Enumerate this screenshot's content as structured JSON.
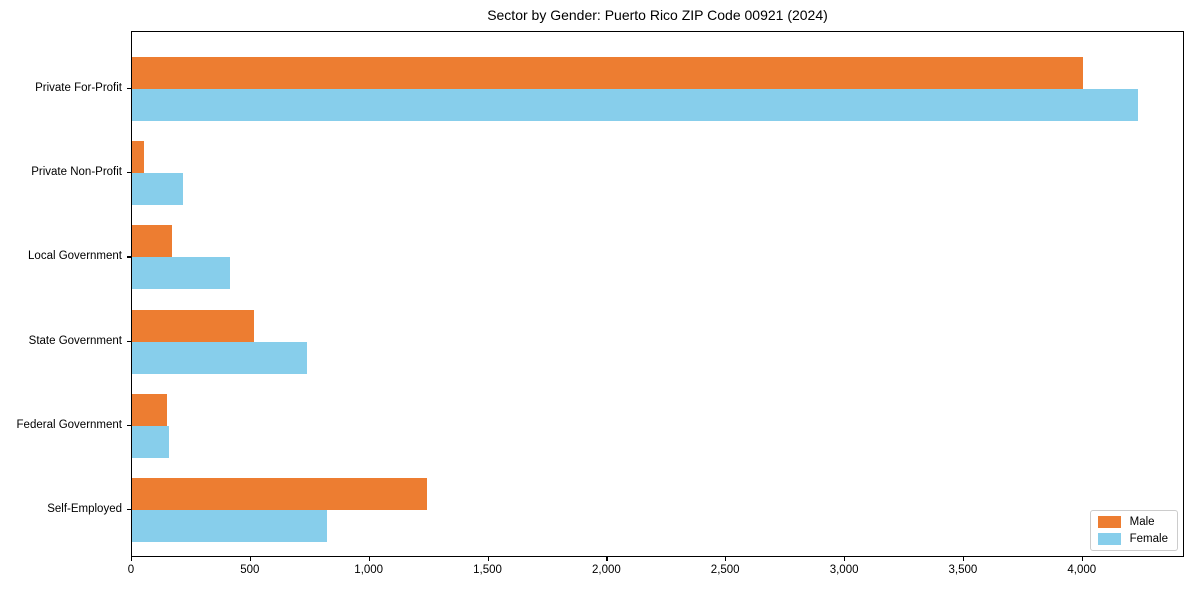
{
  "title": "Sector by Gender: Puerto Rico ZIP Code 00921 (2024)",
  "legend": {
    "position": "lower right",
    "entries": [
      {
        "label": "Male",
        "color": "#ED7D31"
      },
      {
        "label": "Female",
        "color": "#87CEEB"
      }
    ]
  },
  "chart_data": {
    "type": "bar",
    "orientation": "horizontal",
    "title": "Sector by Gender: Puerto Rico ZIP Code 00921 (2024)",
    "xlabel": "",
    "ylabel": "",
    "grid": false,
    "categories": [
      "Private For-Profit",
      "Private Non-Profit",
      "Local Government",
      "State Government",
      "Federal Government",
      "Self-Employed"
    ],
    "series": [
      {
        "name": "Male",
        "color": "#ED7D31",
        "values": [
          4000,
          50,
          170,
          515,
          145,
          1240
        ]
      },
      {
        "name": "Female",
        "color": "#87CEEB",
        "values": [
          4230,
          215,
          410,
          735,
          157,
          820
        ]
      }
    ],
    "xlim": [
      0,
      4430
    ],
    "xticks": [
      0,
      500,
      1000,
      1500,
      2000,
      2500,
      3000,
      3500,
      4000
    ],
    "xtick_labels": [
      "0",
      "500",
      "1,000",
      "1,500",
      "2,000",
      "2,500",
      "3,000",
      "3,500",
      "4,000"
    ],
    "legend_position": "lower right"
  }
}
